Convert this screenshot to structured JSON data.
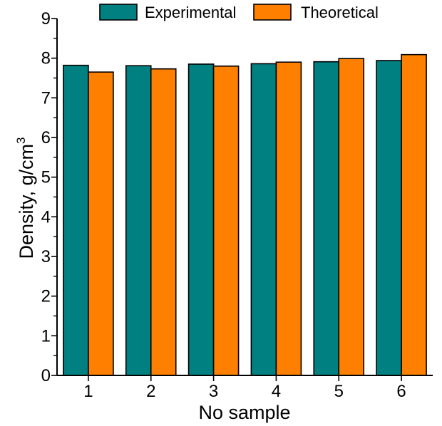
{
  "chart_data": {
    "type": "bar",
    "categories": [
      "1",
      "2",
      "3",
      "4",
      "5",
      "6"
    ],
    "series": [
      {
        "name": "Experimental",
        "color": "#008080",
        "values": [
          7.82,
          7.81,
          7.85,
          7.86,
          7.91,
          7.94
        ]
      },
      {
        "name": "Theoretical",
        "color": "#ff8000",
        "values": [
          7.65,
          7.73,
          7.8,
          7.9,
          7.99,
          8.09
        ]
      }
    ],
    "xlabel": "No sample",
    "ylabel": "Density, g/cm",
    "ylabel_superscript": "3",
    "ylim": [
      0,
      9
    ],
    "yticks": [
      "0",
      "1",
      "2",
      "3",
      "4",
      "5",
      "6",
      "7",
      "8",
      "9"
    ],
    "grid": false,
    "legend_position": "top"
  }
}
